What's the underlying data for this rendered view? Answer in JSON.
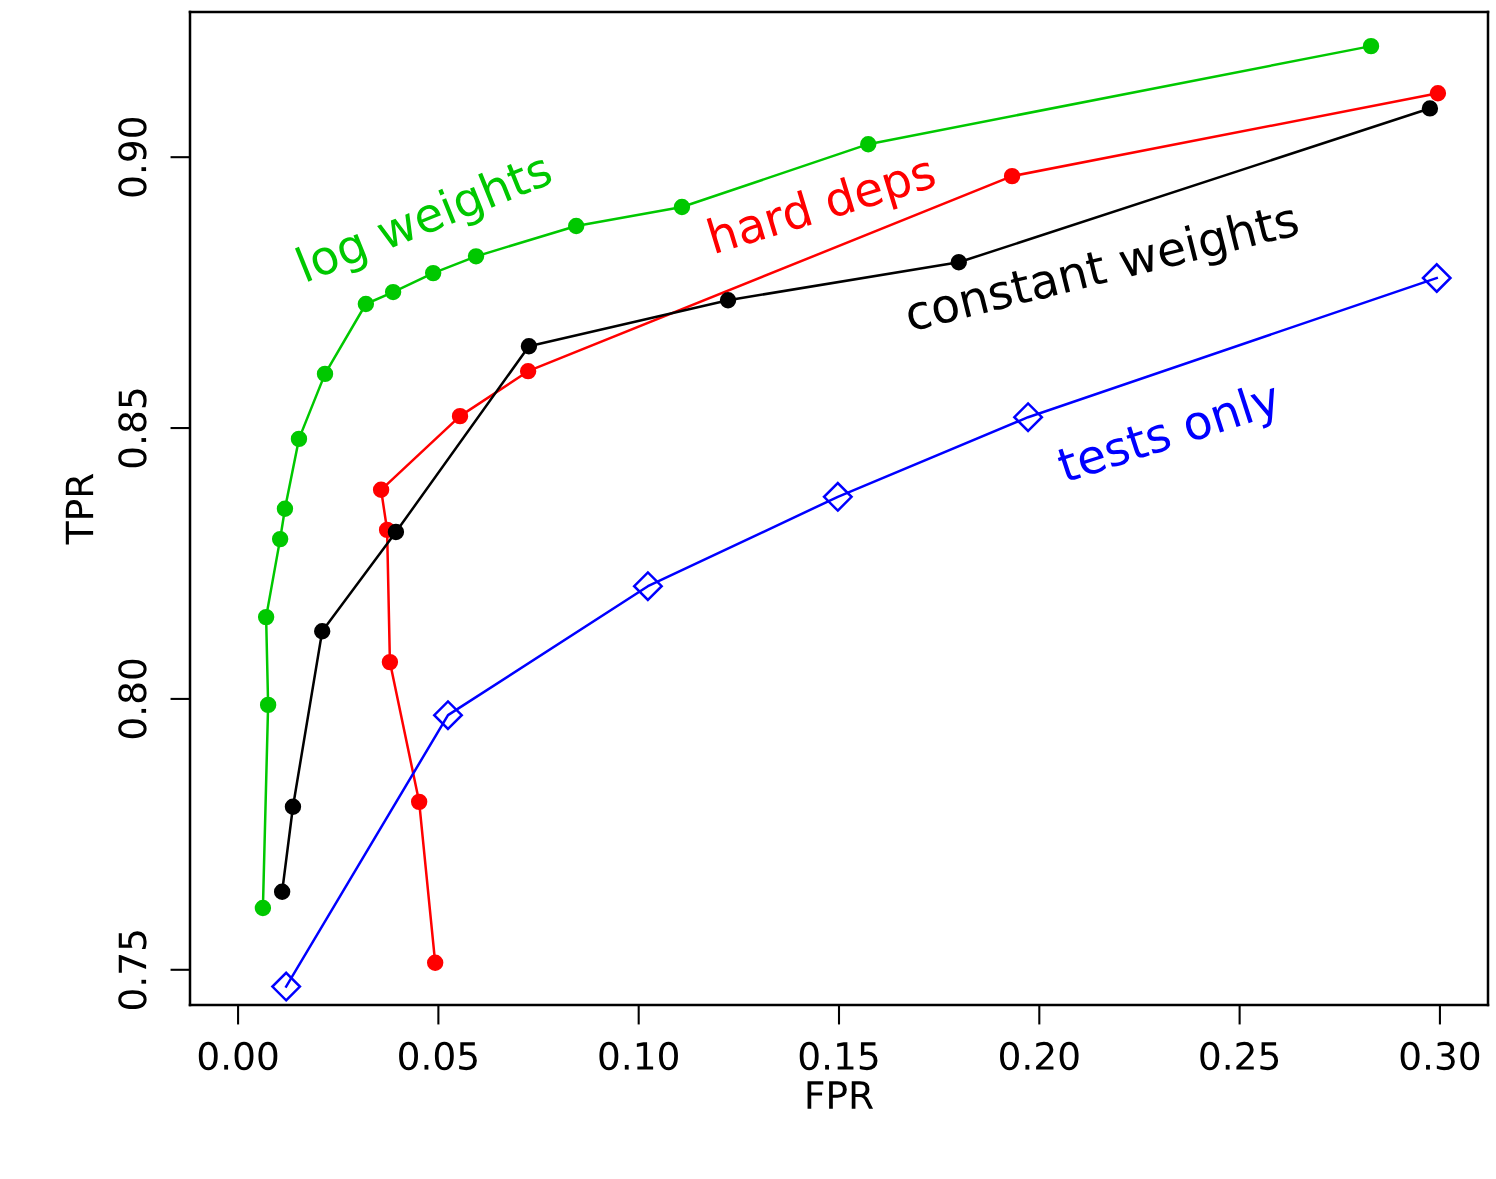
{
  "chart_data": {
    "type": "line",
    "xlabel": "FPR",
    "ylabel": "TPR",
    "xlim": [
      -0.012,
      0.312
    ],
    "ylim": [
      0.7435,
      0.9268
    ],
    "xticks": [
      {
        "value": 0,
        "label": "0.00"
      },
      {
        "value": 0.05,
        "label": "0.05"
      },
      {
        "value": 0.1,
        "label": "0.10"
      },
      {
        "value": 0.15,
        "label": "0.15"
      },
      {
        "value": 0.2,
        "label": "0.20"
      },
      {
        "value": 0.25,
        "label": "0.25"
      },
      {
        "value": 0.3,
        "label": "0.30"
      }
    ],
    "yticks": [
      {
        "value": 0.75,
        "label": "0.75"
      },
      {
        "value": 0.8,
        "label": "0.80"
      },
      {
        "value": 0.85,
        "label": "0.85"
      },
      {
        "value": 0.9,
        "label": "0.90"
      }
    ],
    "grid": false,
    "legend": false,
    "series": [
      {
        "name": "log weights",
        "color": "#00c800",
        "marker": "circle",
        "x": [
          0.0062,
          0.0075,
          0.007,
          0.0105,
          0.0117,
          0.0152,
          0.0217,
          0.0319,
          0.0387,
          0.0487,
          0.0594,
          0.0844,
          0.1108,
          0.1573,
          0.2828
        ],
        "values": [
          0.7614,
          0.7989,
          0.8151,
          0.8295,
          0.8351,
          0.848,
          0.86,
          0.8729,
          0.8751,
          0.8786,
          0.8817,
          0.8873,
          0.8908,
          0.9024,
          0.9205
        ]
      },
      {
        "name": "hard deps",
        "color": "#ff0000",
        "marker": "circle",
        "x": [
          0.0492,
          0.0452,
          0.0379,
          0.0372,
          0.0357,
          0.0554,
          0.0724,
          0.1932,
          0.2995
        ],
        "values": [
          0.7513,
          0.781,
          0.8068,
          0.8312,
          0.8386,
          0.8522,
          0.8605,
          0.8965,
          0.9118
        ]
      },
      {
        "name": "constant weights",
        "color": "#000000",
        "marker": "circle",
        "x": [
          0.011,
          0.0137,
          0.021,
          0.0394,
          0.0726,
          0.1223,
          0.1799,
          0.2975
        ],
        "values": [
          0.7644,
          0.7801,
          0.8125,
          0.8308,
          0.8651,
          0.8736,
          0.8806,
          0.909
        ]
      },
      {
        "name": "tests only",
        "color": "#0000ff",
        "marker": "diamond",
        "x": [
          0.012,
          0.0524,
          0.1023,
          0.1497,
          0.1972,
          0.2992
        ],
        "values": [
          0.7469,
          0.797,
          0.8208,
          0.8373,
          0.852,
          0.8777
        ]
      }
    ]
  }
}
